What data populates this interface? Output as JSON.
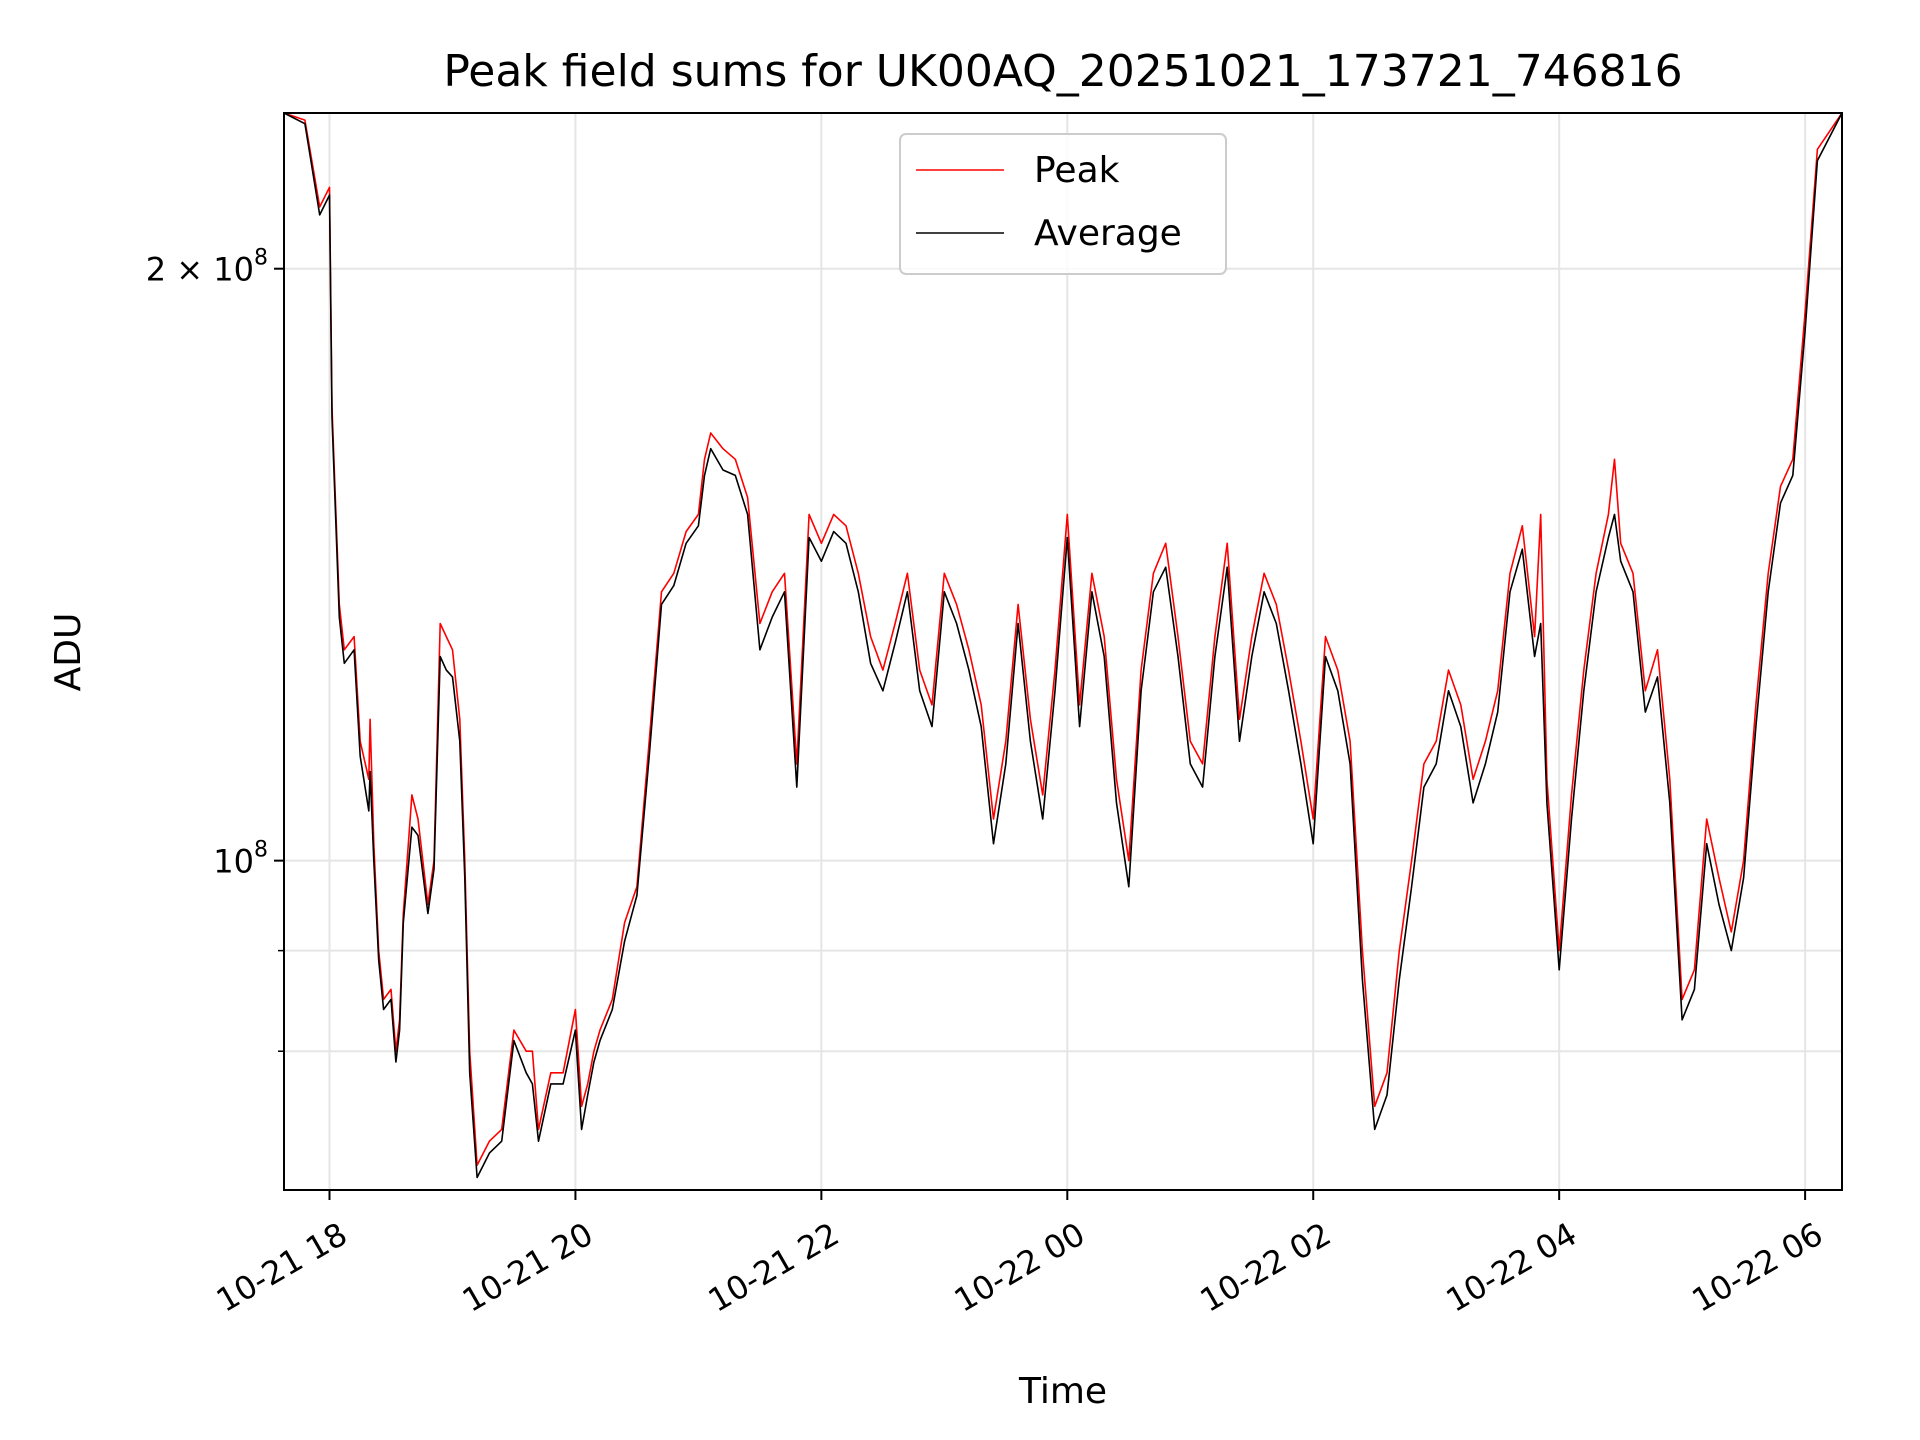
{
  "chart_data": {
    "type": "line",
    "title": "Peak field sums for UK00AQ_20251021_173721_746816",
    "xlabel": "Time",
    "ylabel": "ADU",
    "yscale": "log",
    "ylim": [
      68000000,
      240000000
    ],
    "xlim_hours": [
      -0.37,
      12.3
    ],
    "grid": true,
    "legend_position": "upper center",
    "x_ticks": [
      {
        "h": 0,
        "label": "10-21 18"
      },
      {
        "h": 2,
        "label": "10-21 20"
      },
      {
        "h": 4,
        "label": "10-21 22"
      },
      {
        "h": 6,
        "label": "10-22 00"
      },
      {
        "h": 8,
        "label": "10-22 02"
      },
      {
        "h": 10,
        "label": "10-22 04"
      },
      {
        "h": 12,
        "label": "10-22 06"
      }
    ],
    "y_major_ticks": [
      {
        "v": 100000000,
        "base": "10",
        "exp": "8",
        "mult": ""
      },
      {
        "v": 200000000,
        "base": "10",
        "exp": "8",
        "mult": "2 × "
      }
    ],
    "y_minor_ticks": [
      80000000,
      90000000
    ],
    "series": [
      {
        "name": "Peak",
        "color": "#ff0000",
        "points": [
          [
            -0.37,
            240
          ],
          [
            -0.2,
            238
          ],
          [
            -0.08,
            215
          ],
          [
            0.0,
            220
          ],
          [
            0.02,
            170
          ],
          [
            0.08,
            135
          ],
          [
            0.12,
            128
          ],
          [
            0.2,
            130
          ],
          [
            0.25,
            115
          ],
          [
            0.32,
            110
          ],
          [
            0.33,
            118
          ],
          [
            0.36,
            102
          ],
          [
            0.4,
            90
          ],
          [
            0.44,
            85
          ],
          [
            0.5,
            86
          ],
          [
            0.54,
            80
          ],
          [
            0.57,
            83
          ],
          [
            0.6,
            94
          ],
          [
            0.67,
            108
          ],
          [
            0.72,
            105
          ],
          [
            0.8,
            95
          ],
          [
            0.85,
            100
          ],
          [
            0.9,
            132
          ],
          [
            0.95,
            130
          ],
          [
            1.0,
            128
          ],
          [
            1.06,
            118
          ],
          [
            1.1,
            100
          ],
          [
            1.14,
            80
          ],
          [
            1.2,
            70
          ],
          [
            1.3,
            72
          ],
          [
            1.4,
            73
          ],
          [
            1.5,
            82
          ],
          [
            1.6,
            80
          ],
          [
            1.65,
            80
          ],
          [
            1.7,
            73
          ],
          [
            1.8,
            78
          ],
          [
            1.9,
            78
          ],
          [
            2.0,
            84
          ],
          [
            2.05,
            75
          ],
          [
            2.1,
            77
          ],
          [
            2.15,
            80
          ],
          [
            2.2,
            82
          ],
          [
            2.3,
            85
          ],
          [
            2.4,
            93
          ],
          [
            2.5,
            97
          ],
          [
            2.6,
            115
          ],
          [
            2.7,
            137
          ],
          [
            2.8,
            140
          ],
          [
            2.9,
            147
          ],
          [
            3.0,
            150
          ],
          [
            3.05,
            160
          ],
          [
            3.1,
            165
          ],
          [
            3.2,
            162
          ],
          [
            3.3,
            160
          ],
          [
            3.4,
            153
          ],
          [
            3.5,
            132
          ],
          [
            3.6,
            137
          ],
          [
            3.7,
            140
          ],
          [
            3.8,
            112
          ],
          [
            3.9,
            150
          ],
          [
            4.0,
            145
          ],
          [
            4.1,
            150
          ],
          [
            4.2,
            148
          ],
          [
            4.3,
            140
          ],
          [
            4.4,
            130
          ],
          [
            4.5,
            125
          ],
          [
            4.6,
            132
          ],
          [
            4.7,
            140
          ],
          [
            4.8,
            125
          ],
          [
            4.9,
            120
          ],
          [
            5.0,
            140
          ],
          [
            5.1,
            135
          ],
          [
            5.2,
            128
          ],
          [
            5.3,
            120
          ],
          [
            5.4,
            105
          ],
          [
            5.5,
            115
          ],
          [
            5.6,
            135
          ],
          [
            5.7,
            118
          ],
          [
            5.8,
            108
          ],
          [
            5.9,
            125
          ],
          [
            6.0,
            150
          ],
          [
            6.1,
            120
          ],
          [
            6.2,
            140
          ],
          [
            6.3,
            130
          ],
          [
            6.4,
            110
          ],
          [
            6.5,
            100
          ],
          [
            6.6,
            125
          ],
          [
            6.7,
            140
          ],
          [
            6.8,
            145
          ],
          [
            6.9,
            130
          ],
          [
            7.0,
            115
          ],
          [
            7.1,
            112
          ],
          [
            7.2,
            130
          ],
          [
            7.3,
            145
          ],
          [
            7.4,
            118
          ],
          [
            7.5,
            130
          ],
          [
            7.6,
            140
          ],
          [
            7.7,
            135
          ],
          [
            7.8,
            125
          ],
          [
            7.9,
            115
          ],
          [
            8.0,
            105
          ],
          [
            8.1,
            130
          ],
          [
            8.2,
            125
          ],
          [
            8.3,
            115
          ],
          [
            8.4,
            90
          ],
          [
            8.5,
            75
          ],
          [
            8.6,
            78
          ],
          [
            8.7,
            90
          ],
          [
            8.8,
            100
          ],
          [
            8.9,
            112
          ],
          [
            9.0,
            115
          ],
          [
            9.1,
            125
          ],
          [
            9.2,
            120
          ],
          [
            9.3,
            110
          ],
          [
            9.4,
            115
          ],
          [
            9.5,
            122
          ],
          [
            9.6,
            140
          ],
          [
            9.7,
            148
          ],
          [
            9.8,
            130
          ],
          [
            9.85,
            150
          ],
          [
            9.9,
            110
          ],
          [
            10.0,
            90
          ],
          [
            10.1,
            108
          ],
          [
            10.2,
            125
          ],
          [
            10.3,
            140
          ],
          [
            10.4,
            150
          ],
          [
            10.45,
            160
          ],
          [
            10.5,
            145
          ],
          [
            10.6,
            140
          ],
          [
            10.7,
            122
          ],
          [
            10.8,
            128
          ],
          [
            10.9,
            110
          ],
          [
            11.0,
            85
          ],
          [
            11.1,
            88
          ],
          [
            11.2,
            105
          ],
          [
            11.3,
            98
          ],
          [
            11.4,
            92
          ],
          [
            11.5,
            100
          ],
          [
            11.6,
            120
          ],
          [
            11.7,
            140
          ],
          [
            11.8,
            155
          ],
          [
            11.9,
            160
          ],
          [
            12.0,
            190
          ],
          [
            12.1,
            230
          ],
          [
            12.3,
            240
          ]
        ]
      },
      {
        "name": "Average",
        "color": "#000000",
        "points": [
          [
            -0.37,
            240
          ],
          [
            -0.2,
            237
          ],
          [
            -0.08,
            213
          ],
          [
            0.0,
            218
          ],
          [
            0.02,
            168
          ],
          [
            0.08,
            133
          ],
          [
            0.12,
            126
          ],
          [
            0.2,
            128
          ],
          [
            0.25,
            113
          ],
          [
            0.32,
            106
          ],
          [
            0.33,
            111
          ],
          [
            0.36,
            100
          ],
          [
            0.4,
            89
          ],
          [
            0.44,
            84
          ],
          [
            0.5,
            85
          ],
          [
            0.54,
            79
          ],
          [
            0.57,
            82
          ],
          [
            0.6,
            93
          ],
          [
            0.67,
            104
          ],
          [
            0.72,
            103
          ],
          [
            0.8,
            94
          ],
          [
            0.85,
            99
          ],
          [
            0.9,
            127
          ],
          [
            0.95,
            125
          ],
          [
            1.0,
            124
          ],
          [
            1.06,
            115
          ],
          [
            1.1,
            98
          ],
          [
            1.14,
            78
          ],
          [
            1.2,
            69
          ],
          [
            1.3,
            71
          ],
          [
            1.4,
            72
          ],
          [
            1.5,
            81
          ],
          [
            1.6,
            78
          ],
          [
            1.65,
            77
          ],
          [
            1.7,
            72
          ],
          [
            1.8,
            77
          ],
          [
            1.9,
            77
          ],
          [
            2.0,
            82
          ],
          [
            2.05,
            73
          ],
          [
            2.1,
            76
          ],
          [
            2.15,
            79
          ],
          [
            2.2,
            81
          ],
          [
            2.3,
            84
          ],
          [
            2.4,
            91
          ],
          [
            2.5,
            96
          ],
          [
            2.6,
            113
          ],
          [
            2.7,
            135
          ],
          [
            2.8,
            138
          ],
          [
            2.9,
            145
          ],
          [
            3.0,
            148
          ],
          [
            3.05,
            157
          ],
          [
            3.1,
            162
          ],
          [
            3.2,
            158
          ],
          [
            3.3,
            157
          ],
          [
            3.4,
            150
          ],
          [
            3.5,
            128
          ],
          [
            3.6,
            133
          ],
          [
            3.7,
            137
          ],
          [
            3.8,
            109
          ],
          [
            3.9,
            146
          ],
          [
            4.0,
            142
          ],
          [
            4.1,
            147
          ],
          [
            4.2,
            145
          ],
          [
            4.3,
            137
          ],
          [
            4.4,
            126
          ],
          [
            4.5,
            122
          ],
          [
            4.6,
            129
          ],
          [
            4.7,
            137
          ],
          [
            4.8,
            122
          ],
          [
            4.9,
            117
          ],
          [
            5.0,
            137
          ],
          [
            5.1,
            132
          ],
          [
            5.2,
            125
          ],
          [
            5.3,
            117
          ],
          [
            5.4,
            102
          ],
          [
            5.5,
            112
          ],
          [
            5.6,
            132
          ],
          [
            5.7,
            115
          ],
          [
            5.8,
            105
          ],
          [
            5.9,
            122
          ],
          [
            6.0,
            146
          ],
          [
            6.1,
            117
          ],
          [
            6.2,
            137
          ],
          [
            6.3,
            127
          ],
          [
            6.4,
            107
          ],
          [
            6.5,
            97
          ],
          [
            6.6,
            122
          ],
          [
            6.7,
            137
          ],
          [
            6.8,
            141
          ],
          [
            6.9,
            127
          ],
          [
            7.0,
            112
          ],
          [
            7.1,
            109
          ],
          [
            7.2,
            127
          ],
          [
            7.3,
            141
          ],
          [
            7.4,
            115
          ],
          [
            7.5,
            127
          ],
          [
            7.6,
            137
          ],
          [
            7.7,
            132
          ],
          [
            7.8,
            122
          ],
          [
            7.9,
            112
          ],
          [
            8.0,
            102
          ],
          [
            8.1,
            127
          ],
          [
            8.2,
            122
          ],
          [
            8.3,
            112
          ],
          [
            8.4,
            87
          ],
          [
            8.5,
            73
          ],
          [
            8.6,
            76
          ],
          [
            8.7,
            87
          ],
          [
            8.8,
            97
          ],
          [
            8.9,
            109
          ],
          [
            9.0,
            112
          ],
          [
            9.1,
            122
          ],
          [
            9.2,
            117
          ],
          [
            9.3,
            107
          ],
          [
            9.4,
            112
          ],
          [
            9.5,
            119
          ],
          [
            9.6,
            137
          ],
          [
            9.7,
            144
          ],
          [
            9.8,
            127
          ],
          [
            9.85,
            132
          ],
          [
            9.9,
            107
          ],
          [
            10.0,
            88
          ],
          [
            10.1,
            105
          ],
          [
            10.2,
            122
          ],
          [
            10.3,
            137
          ],
          [
            10.4,
            146
          ],
          [
            10.45,
            150
          ],
          [
            10.5,
            142
          ],
          [
            10.6,
            137
          ],
          [
            10.7,
            119
          ],
          [
            10.8,
            124
          ],
          [
            10.9,
            107
          ],
          [
            11.0,
            83
          ],
          [
            11.1,
            86
          ],
          [
            11.2,
            102
          ],
          [
            11.3,
            95
          ],
          [
            11.4,
            90
          ],
          [
            11.5,
            98
          ],
          [
            11.6,
            117
          ],
          [
            11.7,
            137
          ],
          [
            11.8,
            152
          ],
          [
            11.9,
            157
          ],
          [
            12.0,
            186
          ],
          [
            12.1,
            227
          ],
          [
            12.3,
            240
          ]
        ]
      }
    ],
    "value_units": "millions ADU"
  }
}
